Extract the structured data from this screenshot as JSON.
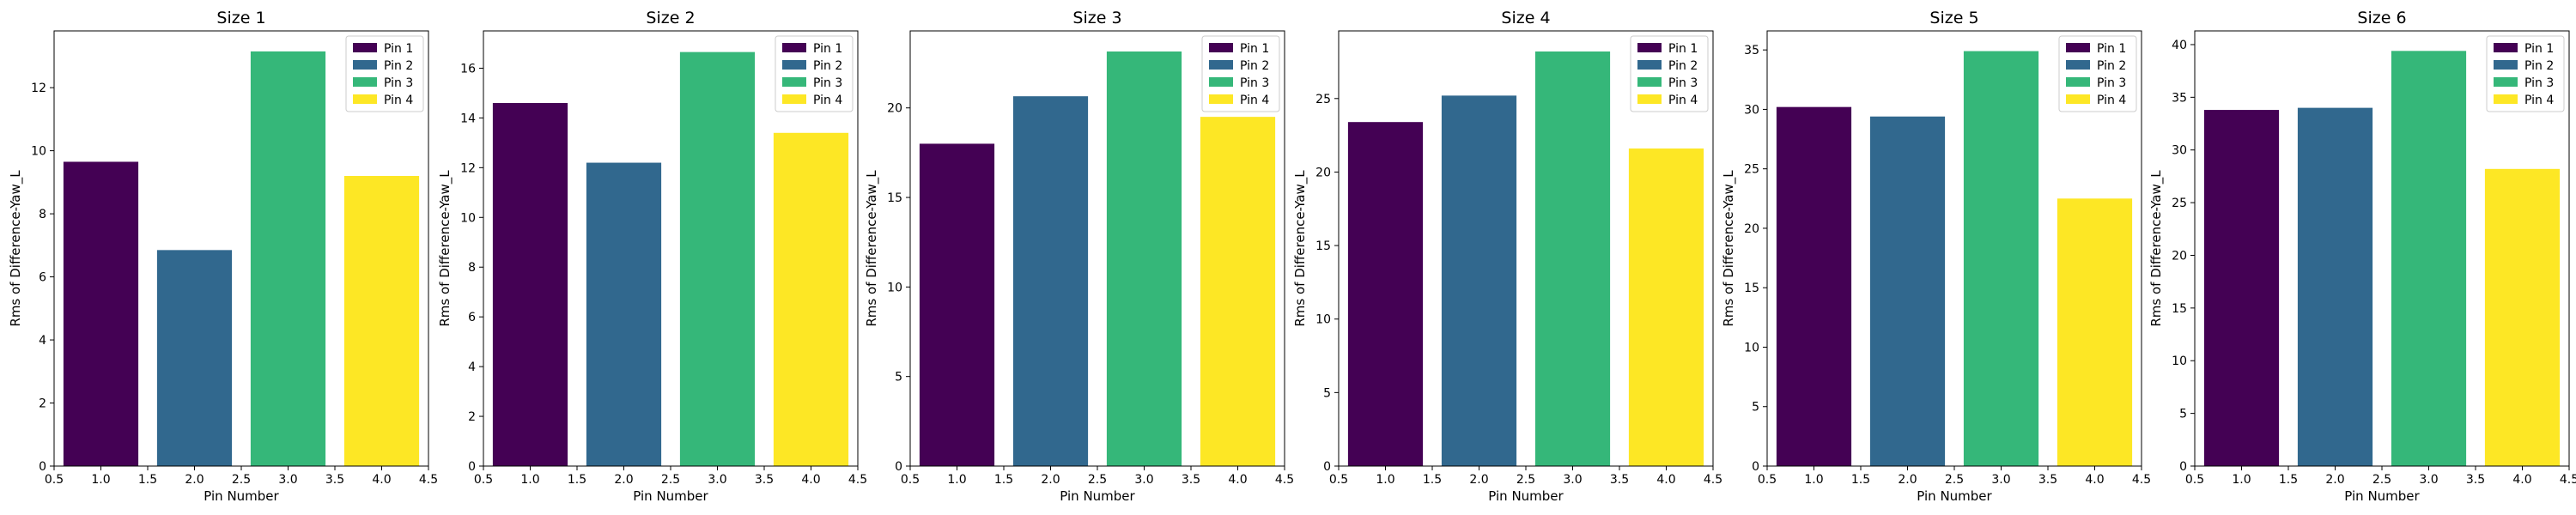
{
  "chart_data": [
    {
      "type": "bar",
      "title": "Size 1",
      "xlabel": "Pin Number",
      "ylabel": "Rms of Difference-Yaw_L",
      "xlim": [
        0.5,
        4.5
      ],
      "xticks": [
        "0.5",
        "1.0",
        "1.5",
        "2.0",
        "2.5",
        "3.0",
        "3.5",
        "4.0",
        "4.5"
      ],
      "ylim": [
        0,
        13.8
      ],
      "yticks": [
        0,
        2,
        4,
        6,
        8,
        10,
        12
      ],
      "grid": false,
      "legend_position": "top-right",
      "x": [
        1,
        2,
        3,
        4
      ],
      "series": [
        {
          "name": "Pin 1",
          "value": 9.65
        },
        {
          "name": "Pin 2",
          "value": 6.85
        },
        {
          "name": "Pin 3",
          "value": 13.15
        },
        {
          "name": "Pin 4",
          "value": 9.2
        }
      ]
    },
    {
      "type": "bar",
      "title": "Size 2",
      "xlabel": "Pin Number",
      "ylabel": "Rms of Difference-Yaw_L",
      "xlim": [
        0.5,
        4.5
      ],
      "xticks": [
        "0.5",
        "1.0",
        "1.5",
        "2.0",
        "2.5",
        "3.0",
        "3.5",
        "4.0",
        "4.5"
      ],
      "ylim": [
        0,
        17.5
      ],
      "yticks": [
        0,
        2,
        4,
        6,
        8,
        10,
        12,
        14,
        16
      ],
      "grid": false,
      "legend_position": "top-right",
      "x": [
        1,
        2,
        3,
        4
      ],
      "series": [
        {
          "name": "Pin 1",
          "value": 14.6
        },
        {
          "name": "Pin 2",
          "value": 12.2
        },
        {
          "name": "Pin 3",
          "value": 16.65
        },
        {
          "name": "Pin 4",
          "value": 13.4
        }
      ]
    },
    {
      "type": "bar",
      "title": "Size 3",
      "xlabel": "Pin Number",
      "ylabel": "Rms of Difference-Yaw_L",
      "xlim": [
        0.5,
        4.5
      ],
      "xticks": [
        "0.5",
        "1.0",
        "1.5",
        "2.0",
        "2.5",
        "3.0",
        "3.5",
        "4.0",
        "4.5"
      ],
      "ylim": [
        0,
        24.3
      ],
      "yticks": [
        0,
        5,
        10,
        15,
        20
      ],
      "grid": false,
      "legend_position": "top-right",
      "x": [
        1,
        2,
        3,
        4
      ],
      "series": [
        {
          "name": "Pin 1",
          "value": 18.0
        },
        {
          "name": "Pin 2",
          "value": 20.65
        },
        {
          "name": "Pin 3",
          "value": 23.15
        },
        {
          "name": "Pin 4",
          "value": 19.5
        }
      ]
    },
    {
      "type": "bar",
      "title": "Size 4",
      "xlabel": "Pin Number",
      "ylabel": "Rms of Difference-Yaw_L",
      "xlim": [
        0.5,
        4.5
      ],
      "xticks": [
        "0.5",
        "1.0",
        "1.5",
        "2.0",
        "2.5",
        "3.0",
        "3.5",
        "4.0",
        "4.5"
      ],
      "ylim": [
        0,
        29.6
      ],
      "yticks": [
        0,
        5,
        10,
        15,
        20,
        25
      ],
      "grid": false,
      "legend_position": "top-right",
      "x": [
        1,
        2,
        3,
        4
      ],
      "series": [
        {
          "name": "Pin 1",
          "value": 23.4
        },
        {
          "name": "Pin 2",
          "value": 25.2
        },
        {
          "name": "Pin 3",
          "value": 28.2
        },
        {
          "name": "Pin 4",
          "value": 21.6
        }
      ]
    },
    {
      "type": "bar",
      "title": "Size 5",
      "xlabel": "Pin Number",
      "ylabel": "Rms of Difference-Yaw_L",
      "xlim": [
        0.5,
        4.5
      ],
      "xticks": [
        "0.5",
        "1.0",
        "1.5",
        "2.0",
        "2.5",
        "3.0",
        "3.5",
        "4.0",
        "4.5"
      ],
      "ylim": [
        0,
        36.6
      ],
      "yticks": [
        0,
        5,
        10,
        15,
        20,
        25,
        30,
        35
      ],
      "grid": false,
      "legend_position": "top-right",
      "x": [
        1,
        2,
        3,
        4
      ],
      "series": [
        {
          "name": "Pin 1",
          "value": 30.2
        },
        {
          "name": "Pin 2",
          "value": 29.4
        },
        {
          "name": "Pin 3",
          "value": 34.9
        },
        {
          "name": "Pin 4",
          "value": 22.5
        }
      ]
    },
    {
      "type": "bar",
      "title": "Size 6",
      "xlabel": "Pin Number",
      "ylabel": "Rms of Difference-Yaw_L",
      "xlim": [
        0.5,
        4.5
      ],
      "xticks": [
        "0.5",
        "1.0",
        "1.5",
        "2.0",
        "2.5",
        "3.0",
        "3.5",
        "4.0",
        "4.5"
      ],
      "ylim": [
        0,
        41.3
      ],
      "yticks": [
        0,
        5,
        10,
        15,
        20,
        25,
        30,
        35,
        40
      ],
      "grid": false,
      "legend_position": "top-right",
      "x": [
        1,
        2,
        3,
        4
      ],
      "series": [
        {
          "name": "Pin 1",
          "value": 33.8
        },
        {
          "name": "Pin 2",
          "value": 34.0
        },
        {
          "name": "Pin 3",
          "value": 39.4
        },
        {
          "name": "Pin 4",
          "value": 28.2
        }
      ]
    }
  ],
  "colors": {
    "pin_1": "#440154",
    "pin_2": "#31688e",
    "pin_3": "#35b779",
    "pin_4": "#fde725"
  }
}
